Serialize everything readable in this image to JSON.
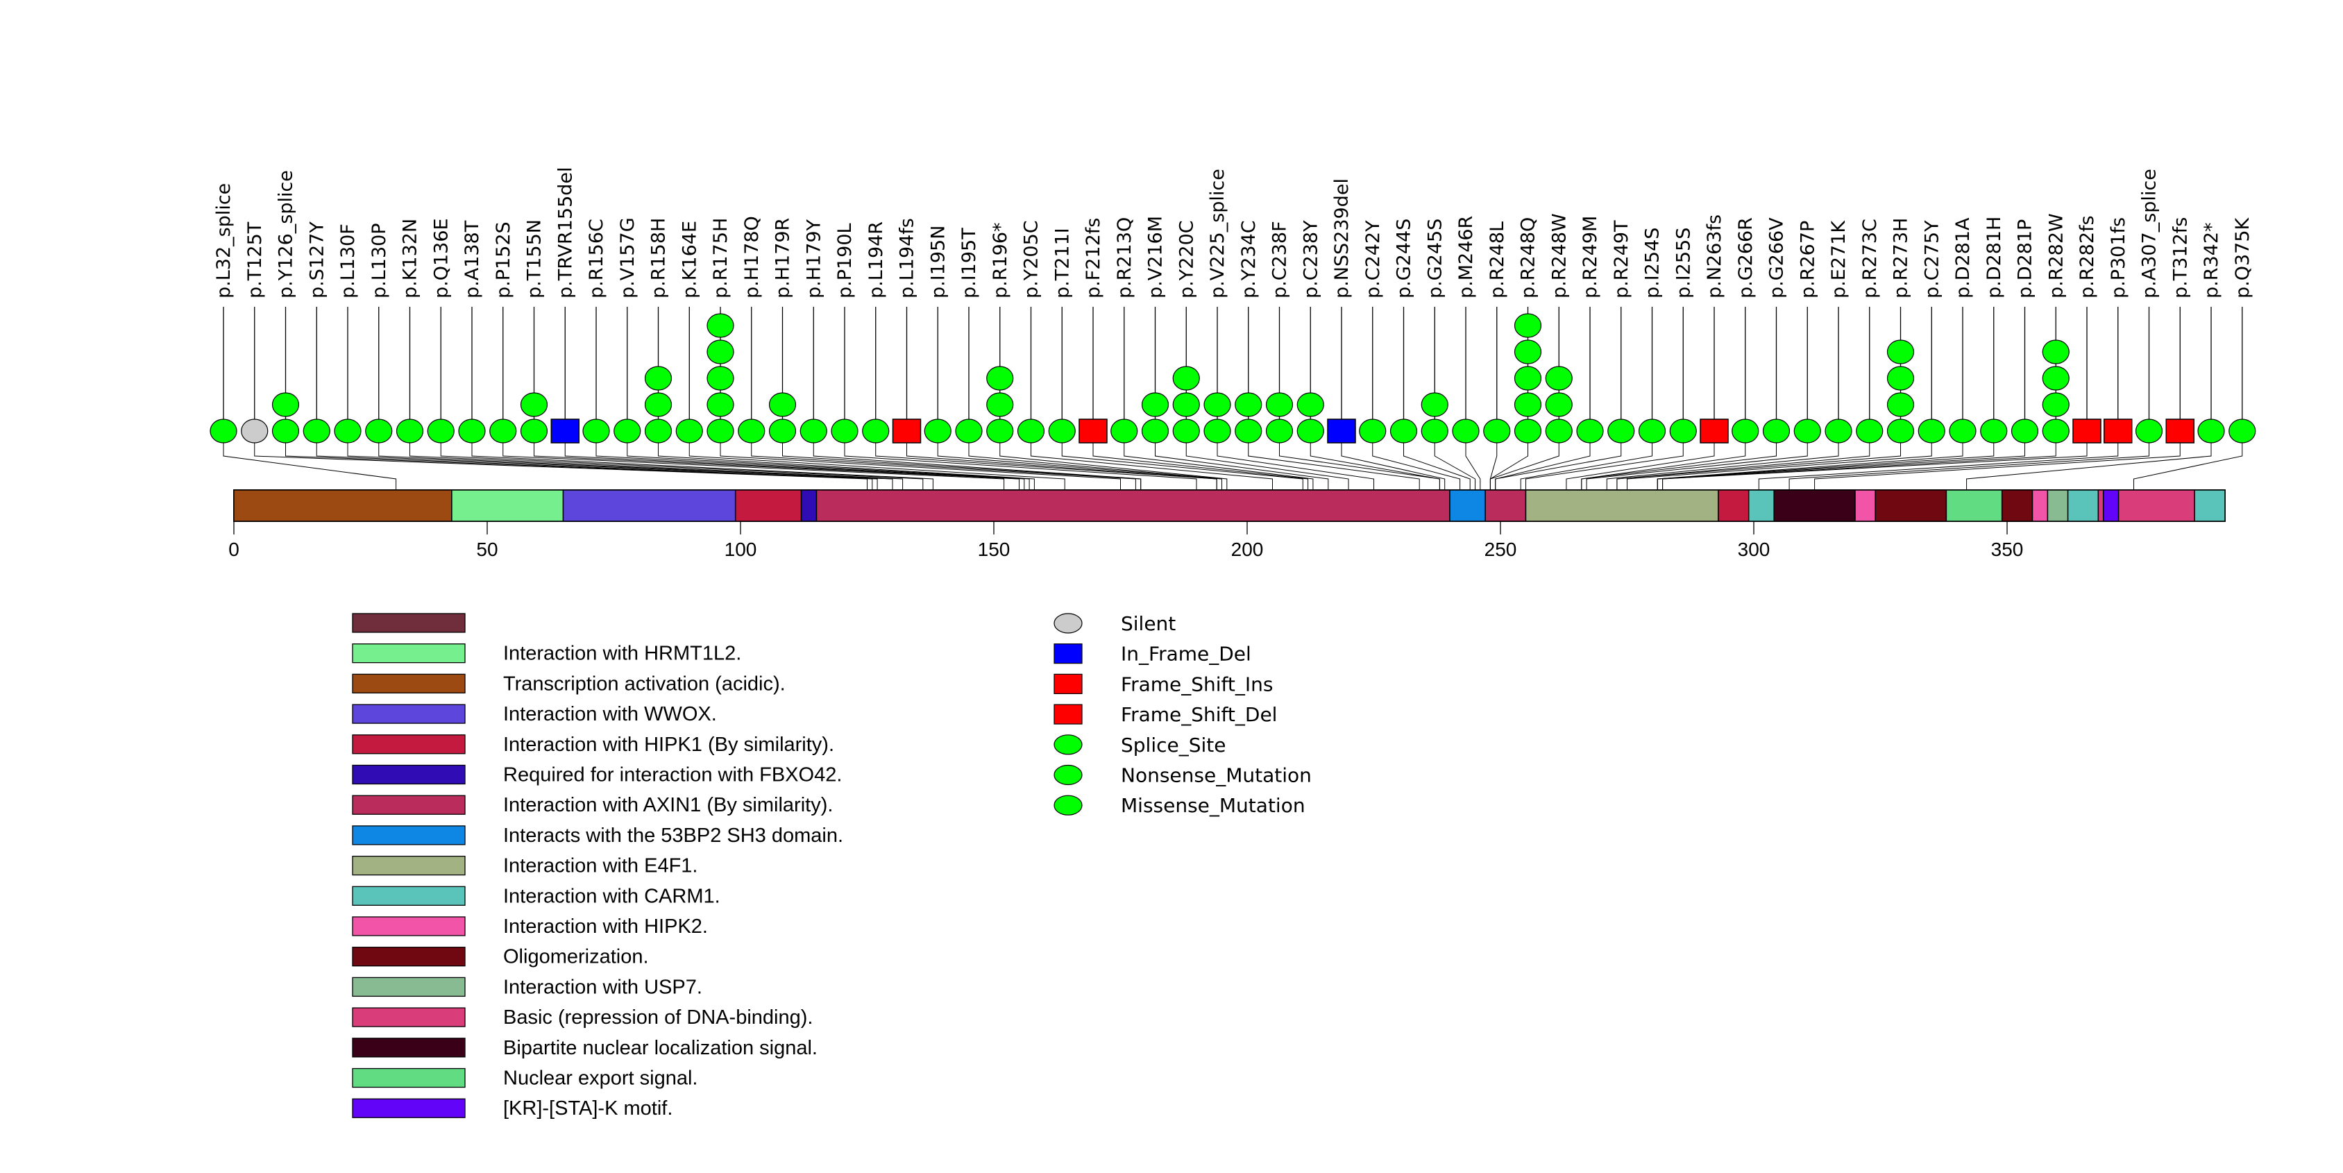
{
  "chart_data": {
    "type": "lollipop",
    "title": "",
    "xlabel": "",
    "ylabel": "",
    "protein_length": 393,
    "x_ticks": [
      0,
      50,
      100,
      150,
      200,
      250,
      300,
      350
    ],
    "xlim": [
      0,
      393
    ],
    "mutation_types": {
      "Silent": {
        "color": "#CCCCCC",
        "shape": "ellipse"
      },
      "In_Frame_Del": {
        "color": "#0000FF",
        "shape": "square"
      },
      "Frame_Shift_Ins": {
        "color": "#FF0000",
        "shape": "square"
      },
      "Frame_Shift_Del": {
        "color": "#FF0000",
        "shape": "square"
      },
      "Splice_Site": {
        "color": "#00FF00",
        "shape": "ellipse"
      },
      "Nonsense_Mutation": {
        "color": "#00FF00",
        "shape": "ellipse"
      },
      "Missense_Mutation": {
        "color": "#00FF00",
        "shape": "ellipse"
      }
    },
    "mutations": [
      {
        "label": "p.L32_splice",
        "pos": 32,
        "count": 1,
        "type": "Splice_Site"
      },
      {
        "label": "p.T125T",
        "pos": 125,
        "count": 1,
        "type": "Silent"
      },
      {
        "label": "p.Y126_splice",
        "pos": 126,
        "count": 2,
        "type": "Splice_Site"
      },
      {
        "label": "p.S127Y",
        "pos": 127,
        "count": 1,
        "type": "Missense_Mutation"
      },
      {
        "label": "p.L130F",
        "pos": 130,
        "count": 1,
        "type": "Missense_Mutation"
      },
      {
        "label": "p.L130P",
        "pos": 130,
        "count": 1,
        "type": "Missense_Mutation"
      },
      {
        "label": "p.K132N",
        "pos": 132,
        "count": 1,
        "type": "Missense_Mutation"
      },
      {
        "label": "p.Q136E",
        "pos": 136,
        "count": 1,
        "type": "Missense_Mutation"
      },
      {
        "label": "p.A138T",
        "pos": 138,
        "count": 1,
        "type": "Missense_Mutation"
      },
      {
        "label": "p.P152S",
        "pos": 152,
        "count": 1,
        "type": "Missense_Mutation"
      },
      {
        "label": "p.T155N",
        "pos": 155,
        "count": 2,
        "type": "Missense_Mutation"
      },
      {
        "label": "p.TRVR155del",
        "pos": 155,
        "count": 1,
        "type": "In_Frame_Del"
      },
      {
        "label": "p.R156C",
        "pos": 156,
        "count": 1,
        "type": "Missense_Mutation"
      },
      {
        "label": "p.V157G",
        "pos": 157,
        "count": 1,
        "type": "Missense_Mutation"
      },
      {
        "label": "p.R158H",
        "pos": 158,
        "count": 3,
        "type": "Missense_Mutation"
      },
      {
        "label": "p.K164E",
        "pos": 164,
        "count": 1,
        "type": "Missense_Mutation"
      },
      {
        "label": "p.R175H",
        "pos": 175,
        "count": 5,
        "type": "Missense_Mutation"
      },
      {
        "label": "p.H178Q",
        "pos": 178,
        "count": 1,
        "type": "Missense_Mutation"
      },
      {
        "label": "p.H179R",
        "pos": 179,
        "count": 2,
        "type": "Missense_Mutation"
      },
      {
        "label": "p.H179Y",
        "pos": 179,
        "count": 1,
        "type": "Missense_Mutation"
      },
      {
        "label": "p.P190L",
        "pos": 190,
        "count": 1,
        "type": "Missense_Mutation"
      },
      {
        "label": "p.L194R",
        "pos": 194,
        "count": 1,
        "type": "Missense_Mutation"
      },
      {
        "label": "p.L194fs",
        "pos": 194,
        "count": 1,
        "type": "Frame_Shift_Del"
      },
      {
        "label": "p.I195N",
        "pos": 195,
        "count": 1,
        "type": "Missense_Mutation"
      },
      {
        "label": "p.I195T",
        "pos": 195,
        "count": 1,
        "type": "Missense_Mutation"
      },
      {
        "label": "p.R196*",
        "pos": 196,
        "count": 3,
        "type": "Nonsense_Mutation"
      },
      {
        "label": "p.Y205C",
        "pos": 205,
        "count": 1,
        "type": "Missense_Mutation"
      },
      {
        "label": "p.T211I",
        "pos": 211,
        "count": 1,
        "type": "Missense_Mutation"
      },
      {
        "label": "p.F212fs",
        "pos": 212,
        "count": 1,
        "type": "Frame_Shift_Del"
      },
      {
        "label": "p.R213Q",
        "pos": 213,
        "count": 1,
        "type": "Missense_Mutation"
      },
      {
        "label": "p.V216M",
        "pos": 216,
        "count": 2,
        "type": "Missense_Mutation"
      },
      {
        "label": "p.Y220C",
        "pos": 220,
        "count": 3,
        "type": "Missense_Mutation"
      },
      {
        "label": "p.V225_splice",
        "pos": 225,
        "count": 2,
        "type": "Splice_Site"
      },
      {
        "label": "p.Y234C",
        "pos": 234,
        "count": 2,
        "type": "Missense_Mutation"
      },
      {
        "label": "p.C238F",
        "pos": 238,
        "count": 2,
        "type": "Missense_Mutation"
      },
      {
        "label": "p.C238Y",
        "pos": 238,
        "count": 2,
        "type": "Missense_Mutation"
      },
      {
        "label": "p.NSS239del",
        "pos": 239,
        "count": 1,
        "type": "In_Frame_Del"
      },
      {
        "label": "p.C242Y",
        "pos": 242,
        "count": 1,
        "type": "Missense_Mutation"
      },
      {
        "label": "p.G244S",
        "pos": 244,
        "count": 1,
        "type": "Missense_Mutation"
      },
      {
        "label": "p.G245S",
        "pos": 245,
        "count": 2,
        "type": "Missense_Mutation"
      },
      {
        "label": "p.M246R",
        "pos": 246,
        "count": 1,
        "type": "Missense_Mutation"
      },
      {
        "label": "p.R248L",
        "pos": 248,
        "count": 1,
        "type": "Missense_Mutation"
      },
      {
        "label": "p.R248Q",
        "pos": 248,
        "count": 5,
        "type": "Missense_Mutation"
      },
      {
        "label": "p.R248W",
        "pos": 248,
        "count": 3,
        "type": "Missense_Mutation"
      },
      {
        "label": "p.R249M",
        "pos": 249,
        "count": 1,
        "type": "Missense_Mutation"
      },
      {
        "label": "p.R249T",
        "pos": 249,
        "count": 1,
        "type": "Missense_Mutation"
      },
      {
        "label": "p.I254S",
        "pos": 254,
        "count": 1,
        "type": "Missense_Mutation"
      },
      {
        "label": "p.I255S",
        "pos": 255,
        "count": 1,
        "type": "Missense_Mutation"
      },
      {
        "label": "p.N263fs",
        "pos": 263,
        "count": 1,
        "type": "Frame_Shift_Del"
      },
      {
        "label": "p.G266R",
        "pos": 266,
        "count": 1,
        "type": "Missense_Mutation"
      },
      {
        "label": "p.G266V",
        "pos": 266,
        "count": 1,
        "type": "Missense_Mutation"
      },
      {
        "label": "p.R267P",
        "pos": 267,
        "count": 1,
        "type": "Missense_Mutation"
      },
      {
        "label": "p.E271K",
        "pos": 271,
        "count": 1,
        "type": "Missense_Mutation"
      },
      {
        "label": "p.R273C",
        "pos": 273,
        "count": 1,
        "type": "Missense_Mutation"
      },
      {
        "label": "p.R273H",
        "pos": 273,
        "count": 4,
        "type": "Missense_Mutation"
      },
      {
        "label": "p.C275Y",
        "pos": 275,
        "count": 1,
        "type": "Missense_Mutation"
      },
      {
        "label": "p.D281A",
        "pos": 281,
        "count": 1,
        "type": "Missense_Mutation"
      },
      {
        "label": "p.D281H",
        "pos": 281,
        "count": 1,
        "type": "Missense_Mutation"
      },
      {
        "label": "p.D281P",
        "pos": 281,
        "count": 1,
        "type": "Missense_Mutation"
      },
      {
        "label": "p.R282W",
        "pos": 282,
        "count": 4,
        "type": "Missense_Mutation"
      },
      {
        "label": "p.R282fs",
        "pos": 282,
        "count": 1,
        "type": "Frame_Shift_Del"
      },
      {
        "label": "p.P301fs",
        "pos": 301,
        "count": 1,
        "type": "Frame_Shift_Del"
      },
      {
        "label": "p.A307_splice",
        "pos": 307,
        "count": 1,
        "type": "Splice_Site"
      },
      {
        "label": "p.T312fs",
        "pos": 312,
        "count": 1,
        "type": "Frame_Shift_Del"
      },
      {
        "label": "p.R342*",
        "pos": 342,
        "count": 1,
        "type": "Nonsense_Mutation"
      },
      {
        "label": "p.Q375K",
        "pos": 375,
        "count": 1,
        "type": "Missense_Mutation"
      }
    ],
    "domains": [
      {
        "name": "Transcription activation (acidic).",
        "start": 0,
        "end": 43,
        "color": "#9C4A12"
      },
      {
        "name": "Interaction with HRMT1L2.",
        "start": 43,
        "end": 65,
        "color": "#76F08E"
      },
      {
        "name": "Interaction with WWOX.",
        "start": 65,
        "end": 99,
        "color": "#5C46DC"
      },
      {
        "name": "Interaction with HIPK1 (By similarity).",
        "start": 99,
        "end": 112,
        "color": "#C41A40"
      },
      {
        "name": "Required for interaction with FBXO42.",
        "start": 112,
        "end": 115,
        "color": "#300CB5"
      },
      {
        "name": "Interaction with AXIN1 (By similarity).",
        "start": 115,
        "end": 240,
        "color": "#BA2C5C"
      },
      {
        "name": "Interacts with the 53BP2 SH3 domain.",
        "start": 240,
        "end": 247,
        "color": "#0E86E4"
      },
      {
        "name": "Interaction with AXIN1 (By similarity).",
        "start": 247,
        "end": 255,
        "color": "#BA2C5C"
      },
      {
        "name": "Interaction with E4F1.",
        "start": 255,
        "end": 293,
        "color": "#A2B283"
      },
      {
        "name": "Interaction with HIPK1 (By similarity).",
        "start": 293,
        "end": 299,
        "color": "#C41A40"
      },
      {
        "name": "Interaction with CARM1.",
        "start": 299,
        "end": 304,
        "color": "#5BC4BA"
      },
      {
        "name": "Bipartite nuclear localization signal.",
        "start": 304,
        "end": 320,
        "color": "#3A0018"
      },
      {
        "name": "Interaction with HIPK2.",
        "start": 320,
        "end": 324,
        "color": "#F255A8"
      },
      {
        "name": "Oligomerization.",
        "start": 324,
        "end": 338,
        "color": "#700812"
      },
      {
        "name": "Nuclear export signal.",
        "start": 338,
        "end": 349,
        "color": "#62DC82"
      },
      {
        "name": "Oligomerization.",
        "start": 349,
        "end": 355,
        "color": "#700812"
      },
      {
        "name": "Interaction with HIPK2.",
        "start": 355,
        "end": 358,
        "color": "#F255A8"
      },
      {
        "name": "Interaction with USP7.",
        "start": 358,
        "end": 362,
        "color": "#88BB91"
      },
      {
        "name": "Interaction with CARM1.",
        "start": 362,
        "end": 368,
        "color": "#5BC4BA"
      },
      {
        "name": "Basic (repression of DNA-binding).",
        "start": 368,
        "end": 369,
        "color": "#D93E7A"
      },
      {
        "name": "[KR]-[STA]-K motif.",
        "start": 369,
        "end": 372,
        "color": "#6204F7"
      },
      {
        "name": "Basic (repression of DNA-binding).",
        "start": 372,
        "end": 387,
        "color": "#D93E7A"
      },
      {
        "name": "Interaction with CARM1.",
        "start": 387,
        "end": 393,
        "color": "#5BC4BA"
      }
    ],
    "domain_legend": [
      {
        "label": "",
        "color": "#702E3C"
      },
      {
        "label": "Interaction with HRMT1L2.",
        "color": "#76F08E"
      },
      {
        "label": "Transcription activation (acidic).",
        "color": "#9C4A12"
      },
      {
        "label": "Interaction with WWOX.",
        "color": "#5C46DC"
      },
      {
        "label": "Interaction with HIPK1 (By similarity).",
        "color": "#C41A40"
      },
      {
        "label": "Required for interaction with FBXO42.",
        "color": "#300CB5"
      },
      {
        "label": "Interaction with AXIN1 (By similarity).",
        "color": "#BA2C5C"
      },
      {
        "label": "Interacts with the 53BP2 SH3 domain.",
        "color": "#0E86E4"
      },
      {
        "label": "Interaction with E4F1.",
        "color": "#A2B283"
      },
      {
        "label": "Interaction with CARM1.",
        "color": "#5BC4BA"
      },
      {
        "label": "Interaction with HIPK2.",
        "color": "#F255A8"
      },
      {
        "label": "Oligomerization.",
        "color": "#700812"
      },
      {
        "label": "Interaction with USP7.",
        "color": "#88BB91"
      },
      {
        "label": "Basic (repression of DNA-binding).",
        "color": "#D93E7A"
      },
      {
        "label": "Bipartite nuclear localization signal.",
        "color": "#3A0018"
      },
      {
        "label": "Nuclear export signal.",
        "color": "#62DC82"
      },
      {
        "label": "[KR]-[STA]-K motif.",
        "color": "#6204F7"
      }
    ],
    "mutation_legend": [
      {
        "label": "Silent",
        "color": "#CCCCCC",
        "shape": "ellipse"
      },
      {
        "label": "In_Frame_Del",
        "color": "#0000FF",
        "shape": "square"
      },
      {
        "label": "Frame_Shift_Ins",
        "color": "#FF0000",
        "shape": "square"
      },
      {
        "label": "Frame_Shift_Del",
        "color": "#FF0000",
        "shape": "square"
      },
      {
        "label": "Splice_Site",
        "color": "#00FF00",
        "shape": "ellipse"
      },
      {
        "label": "Nonsense_Mutation",
        "color": "#00FF00",
        "shape": "ellipse"
      },
      {
        "label": "Missense_Mutation",
        "color": "#00FF00",
        "shape": "ellipse"
      }
    ]
  }
}
